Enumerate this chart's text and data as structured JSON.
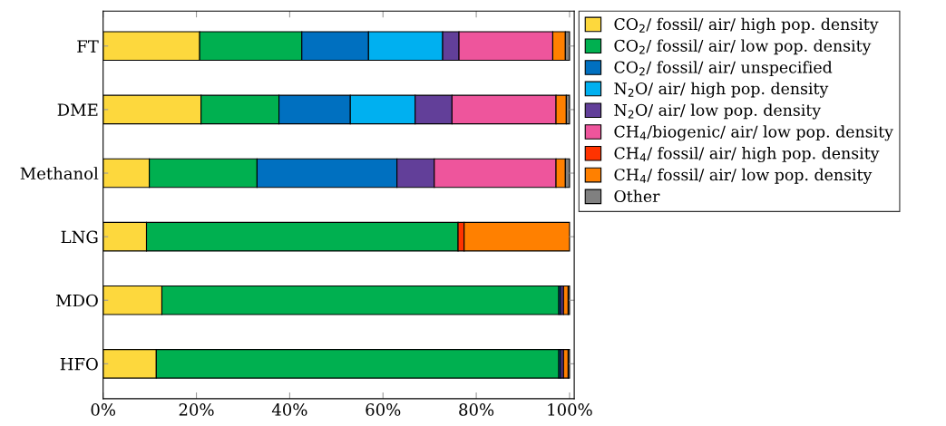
{
  "chart_data": {
    "type": "bar",
    "orientation": "horizontal",
    "stacked": true,
    "legend": "top right",
    "grid": false,
    "categories": [
      "FT",
      "DME",
      "Methanol",
      "LNG",
      "MDO",
      "HFO"
    ],
    "xlim": [
      0,
      101
    ],
    "xticks": [
      {
        "value": 0,
        "label": "0%"
      },
      {
        "value": 20,
        "label": "20%"
      },
      {
        "value": 40,
        "label": "40%"
      },
      {
        "value": 60,
        "label": "60%"
      },
      {
        "value": 80,
        "label": "80%"
      },
      {
        "value": 100,
        "label": "100%"
      }
    ],
    "series": [
      {
        "name": "CO$_{2}$/ fossil/ air/ high pop. density",
        "color": "#fdd83d",
        "values": [
          20.7,
          21.0,
          9.9,
          9.3,
          12.6,
          11.4
        ]
      },
      {
        "name": "CO$_{2}$/ fossil/ air/ low pop. density",
        "color": "#00b050",
        "values": [
          21.9,
          16.7,
          23.1,
          66.8,
          85.1,
          86.3
        ]
      },
      {
        "name": "CO$_{2}$/ fossil/ air/ unspecified",
        "color": "#0070c0",
        "values": [
          14.3,
          15.3,
          30.0,
          null,
          0.4,
          0.4
        ]
      },
      {
        "name": "N$_{2}$O/ air/ high pop. density",
        "color": "#00b0f0",
        "values": [
          15.9,
          13.9,
          null,
          null,
          null,
          null
        ]
      },
      {
        "name": "N$_{2}$O/ air/ low pop. density",
        "color": "#623f99",
        "values": [
          3.5,
          7.9,
          8.0,
          null,
          0.6,
          0.6
        ]
      },
      {
        "name": "CH$_{4}$/biogenic/ air/ low pop. density",
        "color": "#ee559c",
        "values": [
          20.1,
          22.3,
          26.1,
          null,
          null,
          null
        ]
      },
      {
        "name": "CH$_{4}$/ fossil/ air/ high pop. density",
        "color": "#ff3300",
        "values": [
          null,
          null,
          null,
          1.3,
          null,
          null
        ]
      },
      {
        "name": "CH$_{4}$/ fossil/ air/ low pop. density",
        "color": "#ff8000",
        "values": [
          2.7,
          2.2,
          2.0,
          22.6,
          1.0,
          1.0
        ]
      },
      {
        "name": "Other",
        "color": "#808080",
        "values": [
          0.9,
          0.7,
          0.9,
          null,
          0.3,
          0.3
        ]
      }
    ]
  }
}
